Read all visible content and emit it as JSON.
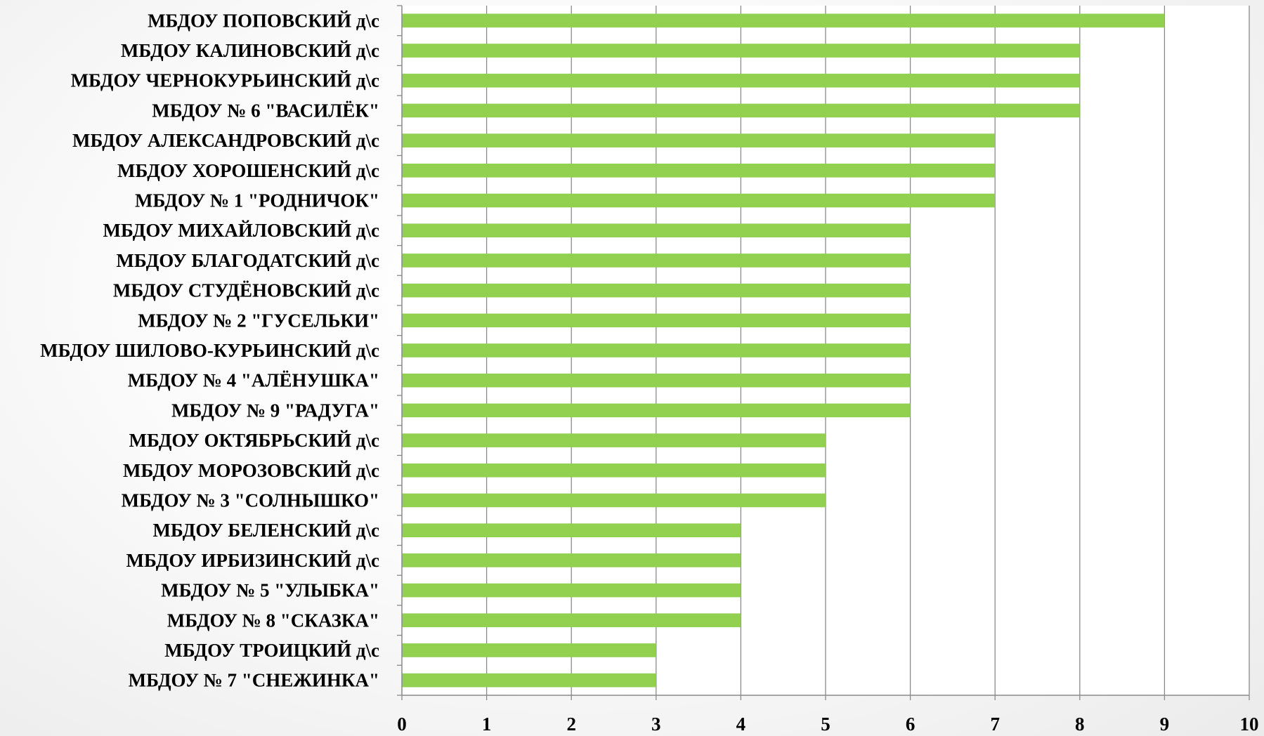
{
  "chart_data": {
    "type": "bar",
    "orientation": "horizontal",
    "categories": [
      "МБДОУ ПОПОВСКИЙ д\\с",
      "МБДОУ КАЛИНОВСКИЙ д\\с",
      "МБДОУ ЧЕРНОКУРЬИНСКИЙ д\\с",
      "МБДОУ № 6 \"ВАСИЛЁК\"",
      "МБДОУ АЛЕКСАНДРОВСКИЙ д\\с",
      "МБДОУ  ХОРОШЕНСКИЙ д\\с",
      "МБДОУ № 1 \"РОДНИЧОК\"",
      "МБДОУ МИХАЙЛОВСКИЙ д\\с",
      "МБДОУ БЛАГОДАТСКИЙ д\\с",
      "МБДОУ  СТУДЁНОВСКИЙ д\\с",
      "МБДОУ № 2 \"ГУСЕЛЬКИ\"",
      "МБДОУ ШИЛОВО-КУРЬИНСКИЙ д\\с",
      "МБДОУ № 4 \"АЛЁНУШКА\"",
      "МБДОУ  № 9 \"РАДУГА\"",
      "МБДОУ ОКТЯБРЬСКИЙ д\\с",
      "МБДОУ МОРОЗОВСКИЙ д\\с",
      "МБДОУ № 3 \"СОЛНЫШКО\"",
      "МБДОУ БЕЛЕНСКИЙ д\\с",
      "МБДОУ ИРБИЗИНСКИЙ д\\с",
      "МБДОУ № 5 \"УЛЫБКА\"",
      "МБДОУ  № 8 \"СКАЗКА\"",
      "МБДОУ ТРОИЦКИЙ д\\с",
      "МБДОУ № 7 \"СНЕЖИНКА\""
    ],
    "values": [
      9,
      8,
      8,
      8,
      7,
      7,
      7,
      6,
      6,
      6,
      6,
      6,
      6,
      6,
      5,
      5,
      5,
      4,
      4,
      4,
      4,
      3,
      3
    ],
    "xlim": [
      0,
      10
    ],
    "x_ticks": [
      "0",
      "1",
      "2",
      "3",
      "4",
      "5",
      "6",
      "7",
      "8",
      "9",
      "10"
    ],
    "grid": true,
    "legend": "none",
    "title": "",
    "xlabel": "",
    "ylabel": "",
    "colors": {
      "bar": "#92D050",
      "grid": "#8a8a8a",
      "axis": "#8a8a8a",
      "plot_background": "#ffffff"
    }
  }
}
